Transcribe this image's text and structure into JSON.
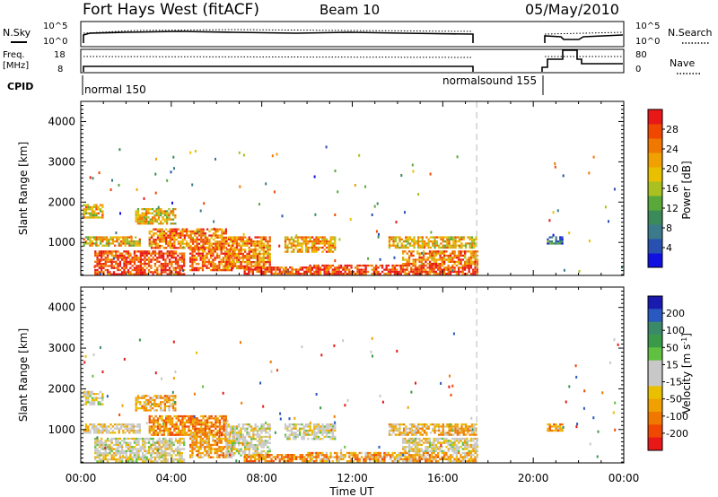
{
  "header": {
    "title": "Fort Hays West (fitACF)",
    "beam": "Beam 10",
    "date": "05/May/2010"
  },
  "status_panels": {
    "nsky": {
      "label": "N.Sky",
      "ticks": [
        "10^5",
        "10^0"
      ]
    },
    "nsearch": {
      "label": "N.Search",
      "ticks": [
        "10^5",
        "10^0"
      ]
    },
    "freq": {
      "label_top": "Freq.",
      "label_unit": "[MHz]",
      "ticks": [
        "18",
        "8"
      ]
    },
    "nave": {
      "label": "Nave",
      "ticks": [
        "80",
        "0"
      ]
    },
    "cpid": {
      "label": "CPID",
      "segments": [
        {
          "name": "normal 150",
          "start": 0.0,
          "end": 17.5
        },
        {
          "name": "normalsound 155",
          "start": 17.5,
          "end": 20.7
        }
      ]
    }
  },
  "axes": {
    "x_ticks": [
      "00:00",
      "04:00",
      "08:00",
      "12:00",
      "16:00",
      "20:00",
      "00:00"
    ],
    "x_label": "Time UT",
    "y_label": "Slant Range [km]",
    "y_ticks": [
      "1000",
      "2000",
      "3000",
      "4000"
    ]
  },
  "colorbars": {
    "power": {
      "label": "Power [dB]",
      "ticks": [
        "4",
        "8",
        "12",
        "16",
        "20",
        "24",
        "28"
      ],
      "colors": [
        "#1010e0",
        "#2850b0",
        "#3a7a8a",
        "#3a8a5a",
        "#5aa83a",
        "#a8c020",
        "#e8c000",
        "#f0a000",
        "#f07800",
        "#f04800",
        "#e81818"
      ]
    },
    "velocity": {
      "label": "Velocity [m s^-1]",
      "ticks": [
        "200",
        "100",
        "50",
        "15",
        "-15",
        "-50",
        "-100",
        "-200"
      ],
      "colors": [
        "#1a1ab0",
        "#2858c0",
        "#3a8a6a",
        "#3a9a4a",
        "#60c040",
        "#c8c8c8",
        "#c8c8c8",
        "#e8c000",
        "#f0a000",
        "#f07800",
        "#f04800",
        "#e81818"
      ]
    }
  },
  "chart_data": [
    {
      "type": "heatmap",
      "name": "power",
      "x_range_hours": [
        0,
        24
      ],
      "ylim": [
        180,
        4500
      ],
      "xlabel": "",
      "ylabel": "Slant Range [km]",
      "dashed_marker_hour": 17.5,
      "regions": [
        {
          "x0": 0.1,
          "x1": 1.0,
          "y0": 1600,
          "y1": 1950,
          "val": 20
        },
        {
          "x0": 0.1,
          "x1": 2.6,
          "y0": 900,
          "y1": 1150,
          "val": 20
        },
        {
          "x0": 0.6,
          "x1": 4.6,
          "y0": 220,
          "y1": 800,
          "val": 28
        },
        {
          "x0": 2.4,
          "x1": 4.2,
          "y0": 1450,
          "y1": 1850,
          "val": 20
        },
        {
          "x0": 3.0,
          "x1": 6.4,
          "y0": 850,
          "y1": 1350,
          "val": 24
        },
        {
          "x0": 4.8,
          "x1": 6.8,
          "y0": 300,
          "y1": 900,
          "val": 26
        },
        {
          "x0": 6.4,
          "x1": 8.4,
          "y0": 350,
          "y1": 1150,
          "val": 24
        },
        {
          "x0": 7.2,
          "x1": 10.2,
          "y0": 200,
          "y1": 400,
          "val": 28
        },
        {
          "x0": 9.0,
          "x1": 11.2,
          "y0": 750,
          "y1": 1150,
          "val": 22
        },
        {
          "x0": 10.0,
          "x1": 17.5,
          "y0": 200,
          "y1": 450,
          "val": 28
        },
        {
          "x0": 13.6,
          "x1": 17.5,
          "y0": 850,
          "y1": 1150,
          "val": 20
        },
        {
          "x0": 14.2,
          "x1": 17.5,
          "y0": 450,
          "y1": 800,
          "val": 24
        },
        {
          "x0": 20.6,
          "x1": 21.3,
          "y0": 950,
          "y1": 1150,
          "val": 8
        }
      ]
    },
    {
      "type": "heatmap",
      "name": "velocity",
      "x_range_hours": [
        0,
        24
      ],
      "ylim": [
        180,
        4500
      ],
      "xlabel": "Time UT",
      "ylabel": "Slant Range [km]",
      "dashed_marker_hour": 17.5,
      "regions": [
        {
          "x0": 0.1,
          "x1": 1.0,
          "y0": 1600,
          "y1": 1950,
          "val": 0
        },
        {
          "x0": 0.1,
          "x1": 2.6,
          "y0": 900,
          "y1": 1150,
          "val": -10
        },
        {
          "x0": 0.6,
          "x1": 4.6,
          "y0": 220,
          "y1": 800,
          "val": 0
        },
        {
          "x0": 2.4,
          "x1": 4.2,
          "y0": 1450,
          "y1": 1850,
          "val": -40
        },
        {
          "x0": 3.0,
          "x1": 6.4,
          "y0": 850,
          "y1": 1350,
          "val": -60
        },
        {
          "x0": 4.8,
          "x1": 6.8,
          "y0": 300,
          "y1": 900,
          "val": -40
        },
        {
          "x0": 6.4,
          "x1": 8.4,
          "y0": 350,
          "y1": 1150,
          "val": 0
        },
        {
          "x0": 7.2,
          "x1": 10.2,
          "y0": 200,
          "y1": 400,
          "val": -60
        },
        {
          "x0": 9.0,
          "x1": 11.2,
          "y0": 750,
          "y1": 1150,
          "val": 0
        },
        {
          "x0": 10.0,
          "x1": 17.5,
          "y0": 200,
          "y1": 450,
          "val": -40
        },
        {
          "x0": 13.6,
          "x1": 17.5,
          "y0": 850,
          "y1": 1150,
          "val": -30
        },
        {
          "x0": 14.2,
          "x1": 17.5,
          "y0": 450,
          "y1": 800,
          "val": 0
        },
        {
          "x0": 20.6,
          "x1": 21.3,
          "y0": 950,
          "y1": 1150,
          "val": -50
        }
      ]
    }
  ]
}
